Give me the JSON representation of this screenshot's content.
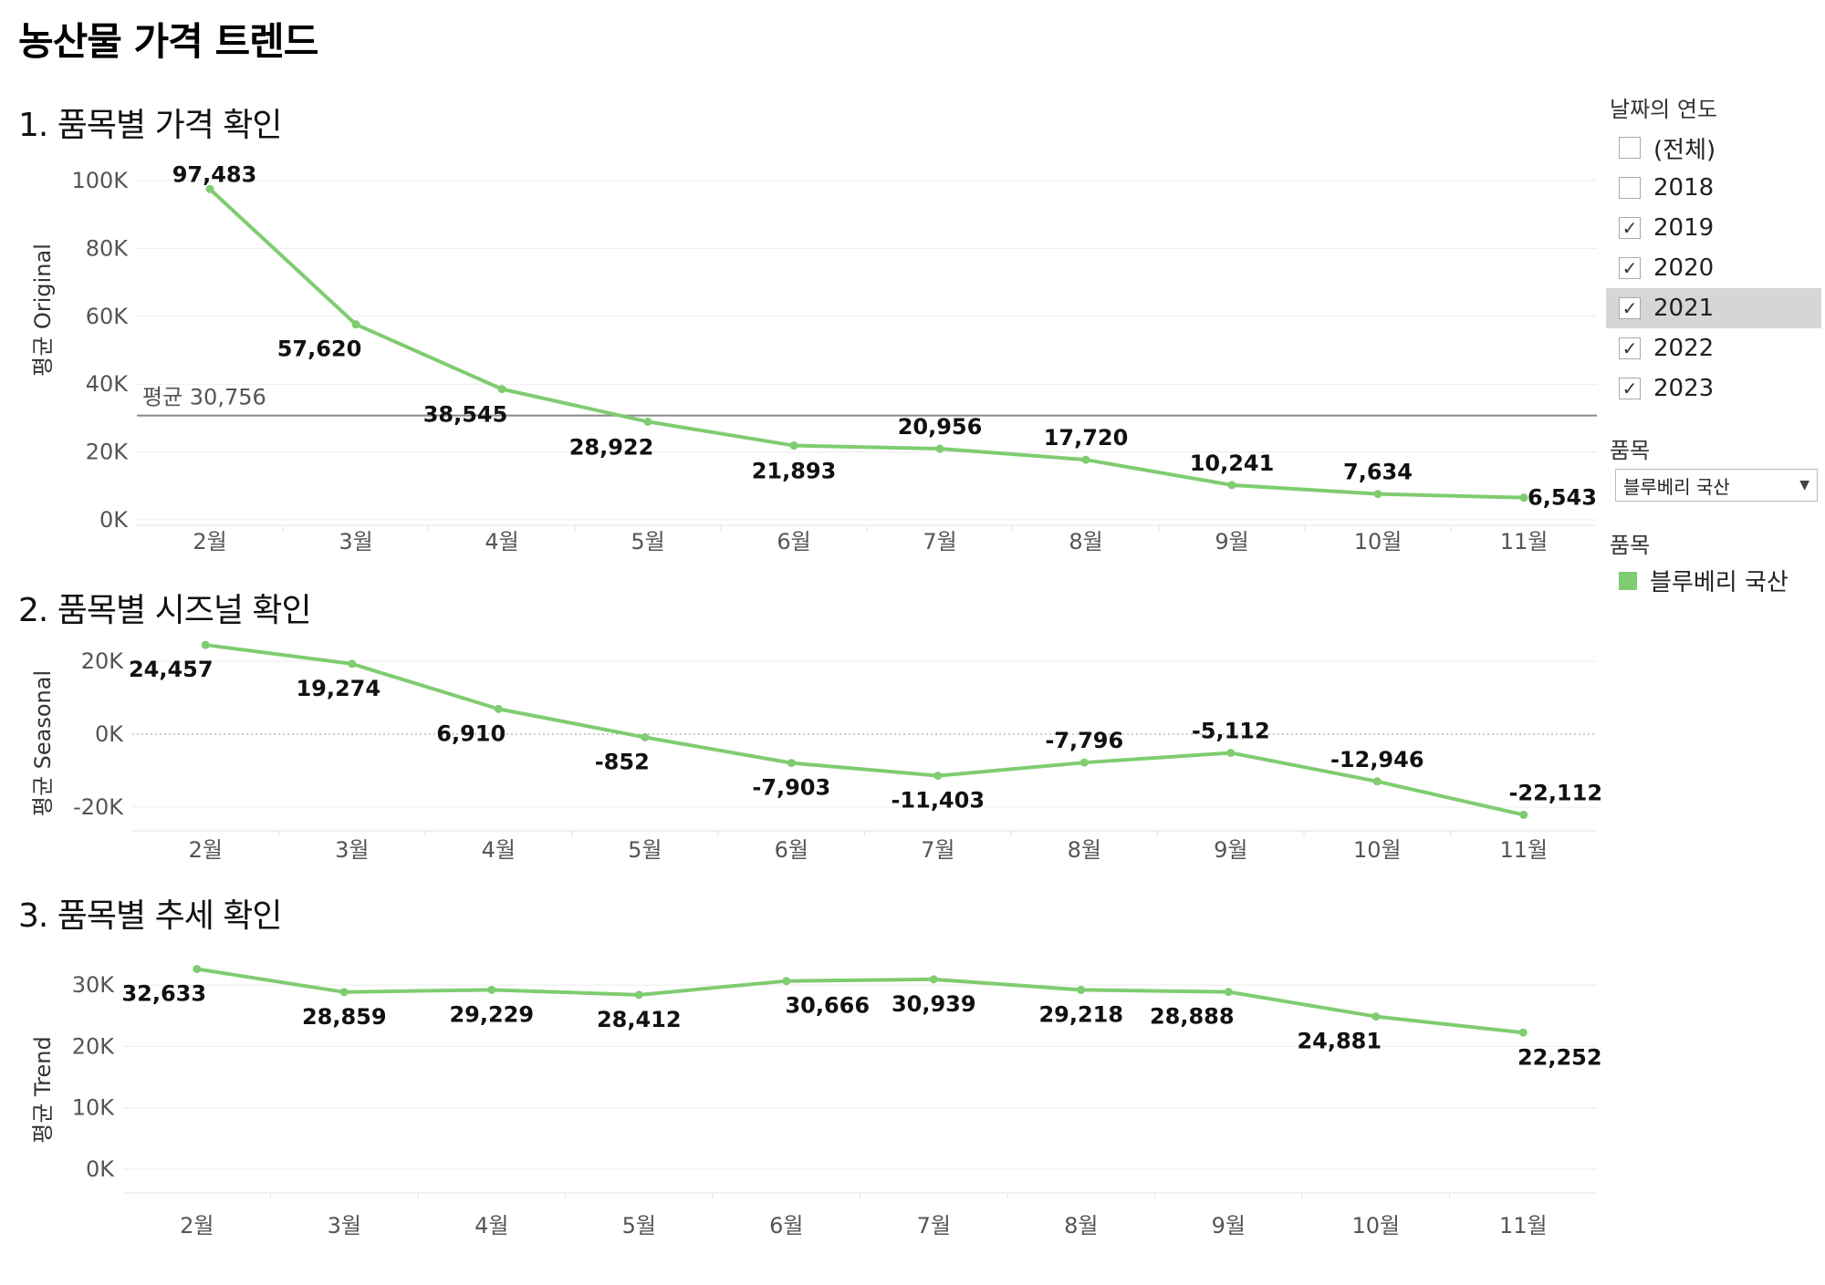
{
  "page_title": "농산물 가격 트렌드",
  "sections": [
    {
      "title": "1. 품목별 가격 확인"
    },
    {
      "title": "2. 품목별 시즈널 확인"
    },
    {
      "title": "3. 품목별 추세 확인"
    }
  ],
  "filters": {
    "year_heading": "날짜의 연도",
    "years": [
      {
        "label": "(전체)",
        "checked": false,
        "selected": false
      },
      {
        "label": "2018",
        "checked": false,
        "selected": false
      },
      {
        "label": "2019",
        "checked": true,
        "selected": false
      },
      {
        "label": "2020",
        "checked": true,
        "selected": false
      },
      {
        "label": "2021",
        "checked": true,
        "selected": true
      },
      {
        "label": "2022",
        "checked": true,
        "selected": false
      },
      {
        "label": "2023",
        "checked": true,
        "selected": false
      }
    ],
    "item_heading": "품목",
    "item_value": "블루베리 국산",
    "legend_heading": "품목",
    "legend_items": [
      {
        "label": "블루베리 국산",
        "color": "#7fcc71"
      }
    ]
  },
  "colors": {
    "line": "#7fcc71",
    "ref_line": "#888888"
  },
  "chart_data": [
    {
      "type": "line",
      "ylabel": "평균 Original",
      "categories": [
        "2월",
        "3월",
        "4월",
        "5월",
        "6월",
        "7월",
        "8월",
        "9월",
        "10월",
        "11월"
      ],
      "values": [
        97483,
        57620,
        38545,
        28922,
        21893,
        20956,
        17720,
        10241,
        7634,
        6543
      ],
      "value_labels": [
        "97,483",
        "57,620",
        "38,545",
        "28,922",
        "21,893",
        "20,956",
        "17,720",
        "10,241",
        "7,634",
        "6,543"
      ],
      "yticks": [
        "100K",
        "80K",
        "60K",
        "40K",
        "20K",
        "0K"
      ],
      "ytick_values": [
        100000,
        80000,
        60000,
        40000,
        20000,
        0
      ],
      "ylim": [
        0,
        100000
      ],
      "reference_line": {
        "value": 30756,
        "label": "평균 30,756"
      }
    },
    {
      "type": "line",
      "ylabel": "평균 Seasonal",
      "categories": [
        "2월",
        "3월",
        "4월",
        "5월",
        "6월",
        "7월",
        "8월",
        "9월",
        "10월",
        "11월"
      ],
      "values": [
        24457,
        19274,
        6910,
        -852,
        -7903,
        -11403,
        -7796,
        -5112,
        -12946,
        -22112
      ],
      "value_labels": [
        "24,457",
        "19,274",
        "6,910",
        "-852",
        "-7,903",
        "-11,403",
        "-7,796",
        "-5,112",
        "-12,946",
        "-22,112"
      ],
      "yticks": [
        "20K",
        "0K",
        "-20K"
      ],
      "ytick_values": [
        20000,
        0,
        -20000
      ],
      "ylim": [
        -25000,
        25000
      ]
    },
    {
      "type": "line",
      "ylabel": "평균 Trend",
      "categories": [
        "2월",
        "3월",
        "4월",
        "5월",
        "6월",
        "7월",
        "8월",
        "9월",
        "10월",
        "11월"
      ],
      "values": [
        32633,
        28859,
        29229,
        28412,
        30666,
        30939,
        29218,
        28888,
        24881,
        22252
      ],
      "value_labels": [
        "32,633",
        "28,859",
        "29,229",
        "28,412",
        "30,666",
        "30,939",
        "29,218",
        "28,888",
        "24,881",
        "22,252"
      ],
      "yticks": [
        "30K",
        "20K",
        "10K",
        "0K"
      ],
      "ytick_values": [
        30000,
        20000,
        10000,
        0
      ],
      "ylim": [
        -3000,
        33000
      ]
    }
  ]
}
